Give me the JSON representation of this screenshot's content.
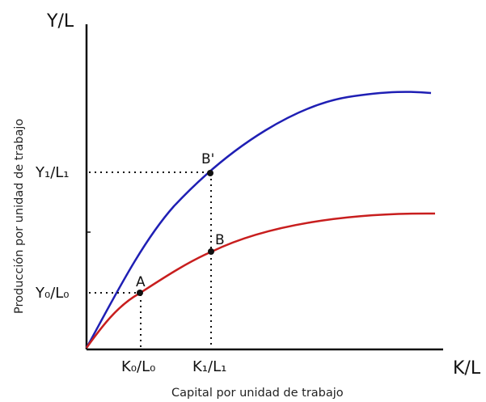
{
  "diagram": {
    "y_axis_title": "Y/L",
    "x_axis_title": "K/L",
    "y_axis_description": "Producción por unidad de trabajo",
    "x_axis_description": "Capital por unidad de trabajo",
    "y_tick_high": "Y₁/L₁",
    "y_tick_low": "Y₀/L₀",
    "x_tick_left": "K₀/L₀",
    "x_tick_right": "K₁/L₁",
    "point_a": "A",
    "point_b": "B",
    "point_b_prime": "B'",
    "colors": {
      "upper_curve": "#1f1fb4",
      "lower_curve": "#c81e1e",
      "axes": "#111111"
    }
  }
}
